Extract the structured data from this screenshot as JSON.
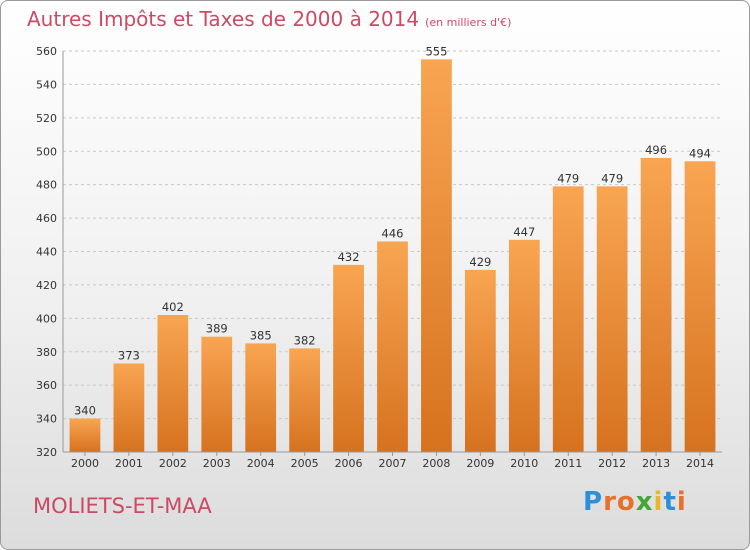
{
  "header": {
    "title": "Autres Impôts et Taxes de 2000 à 2014",
    "subtitle": "(en milliers d'€)"
  },
  "footer": {
    "place": "MOLIETS-ET-MAA",
    "brand": "Proxiti"
  },
  "colors": {
    "title": "#cc4a63",
    "bar_top": "#f8a552",
    "bar_bottom": "#d6721f",
    "brand_letters": [
      "#2f8fd6",
      "#e8702a",
      "#e8702a",
      "#46a33a",
      "#e8b82a",
      "#2f8fd6",
      "#e8702a"
    ]
  },
  "chart_data": {
    "type": "bar",
    "title": "Autres Impôts et Taxes de 2000 à 2014",
    "subtitle": "(en milliers d'€)",
    "categories": [
      "2000",
      "2001",
      "2002",
      "2003",
      "2004",
      "2005",
      "2006",
      "2007",
      "2008",
      "2009",
      "2010",
      "2011",
      "2012",
      "2013",
      "2014"
    ],
    "values": [
      340,
      373,
      402,
      389,
      385,
      382,
      432,
      446,
      555,
      429,
      447,
      479,
      479,
      496,
      494
    ],
    "ylim": [
      320,
      560
    ],
    "yticks": [
      320,
      340,
      360,
      380,
      400,
      420,
      440,
      460,
      480,
      500,
      520,
      540,
      560
    ],
    "grid": "horizontal dashed"
  }
}
